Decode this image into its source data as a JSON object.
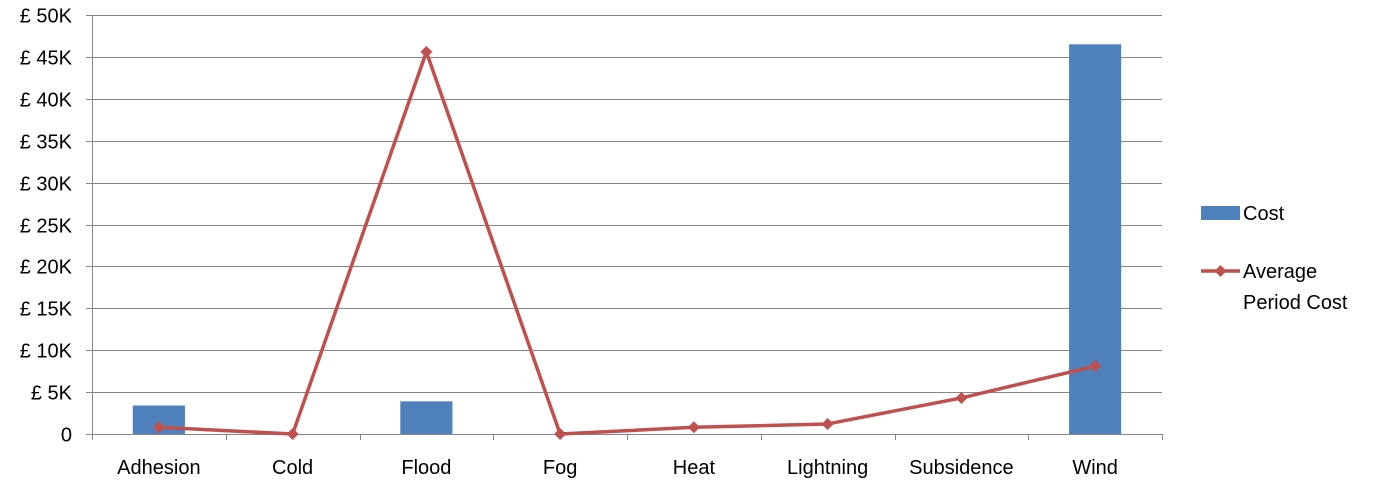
{
  "chart_data": {
    "type": "bar",
    "categories": [
      "Adhesion",
      "Cold",
      "Flood",
      "Fog",
      "Heat",
      "Lightning",
      "Subsidence",
      "Wind"
    ],
    "ylim": [
      0,
      50000
    ],
    "y_ticks": [
      0,
      5000,
      10000,
      15000,
      20000,
      25000,
      30000,
      35000,
      40000,
      45000,
      50000
    ],
    "y_tick_labels": [
      "0",
      "£ 5K",
      "£ 10K",
      "£ 15K",
      "£ 20K",
      "£ 25K",
      "£ 30K",
      "£ 35K",
      "£ 40K",
      "£ 45K",
      "£ 50K"
    ],
    "grid": true,
    "legend_position": "right",
    "series": [
      {
        "name": "Cost",
        "type": "bar",
        "color": "#4F81BD",
        "values": [
          3400,
          0,
          3900,
          0,
          0,
          0,
          0,
          46500
        ]
      },
      {
        "name": "Average Period Cost",
        "type": "line",
        "marker": "diamond",
        "color": "#C0504D",
        "values": [
          800,
          0,
          45600,
          0,
          800,
          1200,
          4300,
          8100
        ]
      }
    ],
    "legend": [
      {
        "lines": [
          "Cost"
        ],
        "color": "#4F81BD",
        "kind": "bar"
      },
      {
        "lines": [
          "Average",
          "Period Cost"
        ],
        "color": "#C0504D",
        "kind": "line"
      }
    ]
  }
}
